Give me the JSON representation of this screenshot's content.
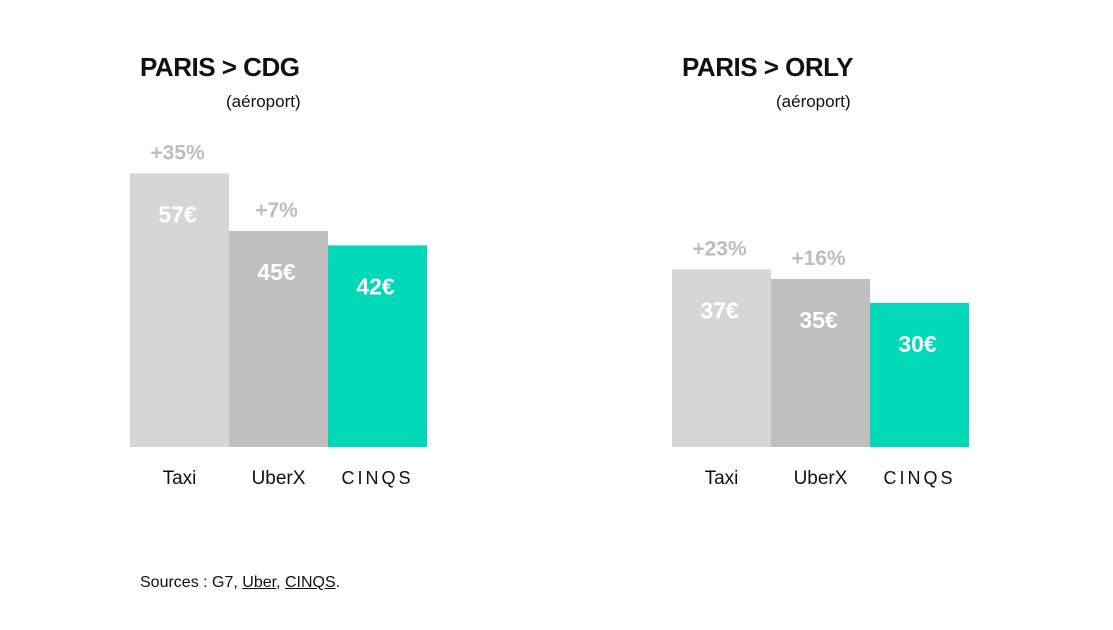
{
  "chart_data": [
    {
      "type": "bar",
      "title": "PARIS > CDG",
      "subtitle": "(aéroport)",
      "categories": [
        "Taxi",
        "UberX",
        "CINQS"
      ],
      "values": [
        57,
        45,
        42
      ],
      "value_labels": [
        "57€",
        "45€",
        "42€"
      ],
      "percent_labels": [
        "+35%",
        "+7%",
        ""
      ],
      "colors": [
        "#d6d6d6",
        "#bfbfbf",
        "#00d8b8"
      ],
      "ylim": [
        0,
        60
      ],
      "grid": false
    },
    {
      "type": "bar",
      "title": "PARIS > ORLY",
      "subtitle": "(aéroport)",
      "categories": [
        "Taxi",
        "UberX",
        "CINQS"
      ],
      "values": [
        37,
        35,
        30
      ],
      "value_labels": [
        "37€",
        "35€",
        "30€"
      ],
      "percent_labels": [
        "+23%",
        "+16%",
        ""
      ],
      "colors": [
        "#d6d6d6",
        "#bfbfbf",
        "#00d8b8"
      ],
      "ylim": [
        0,
        60
      ],
      "grid": false
    }
  ],
  "sources": {
    "prefix": "Sources : G7, ",
    "link_uber": "Uber",
    "separator": ", ",
    "link_cinqs": "CINQS",
    "suffix": "."
  }
}
